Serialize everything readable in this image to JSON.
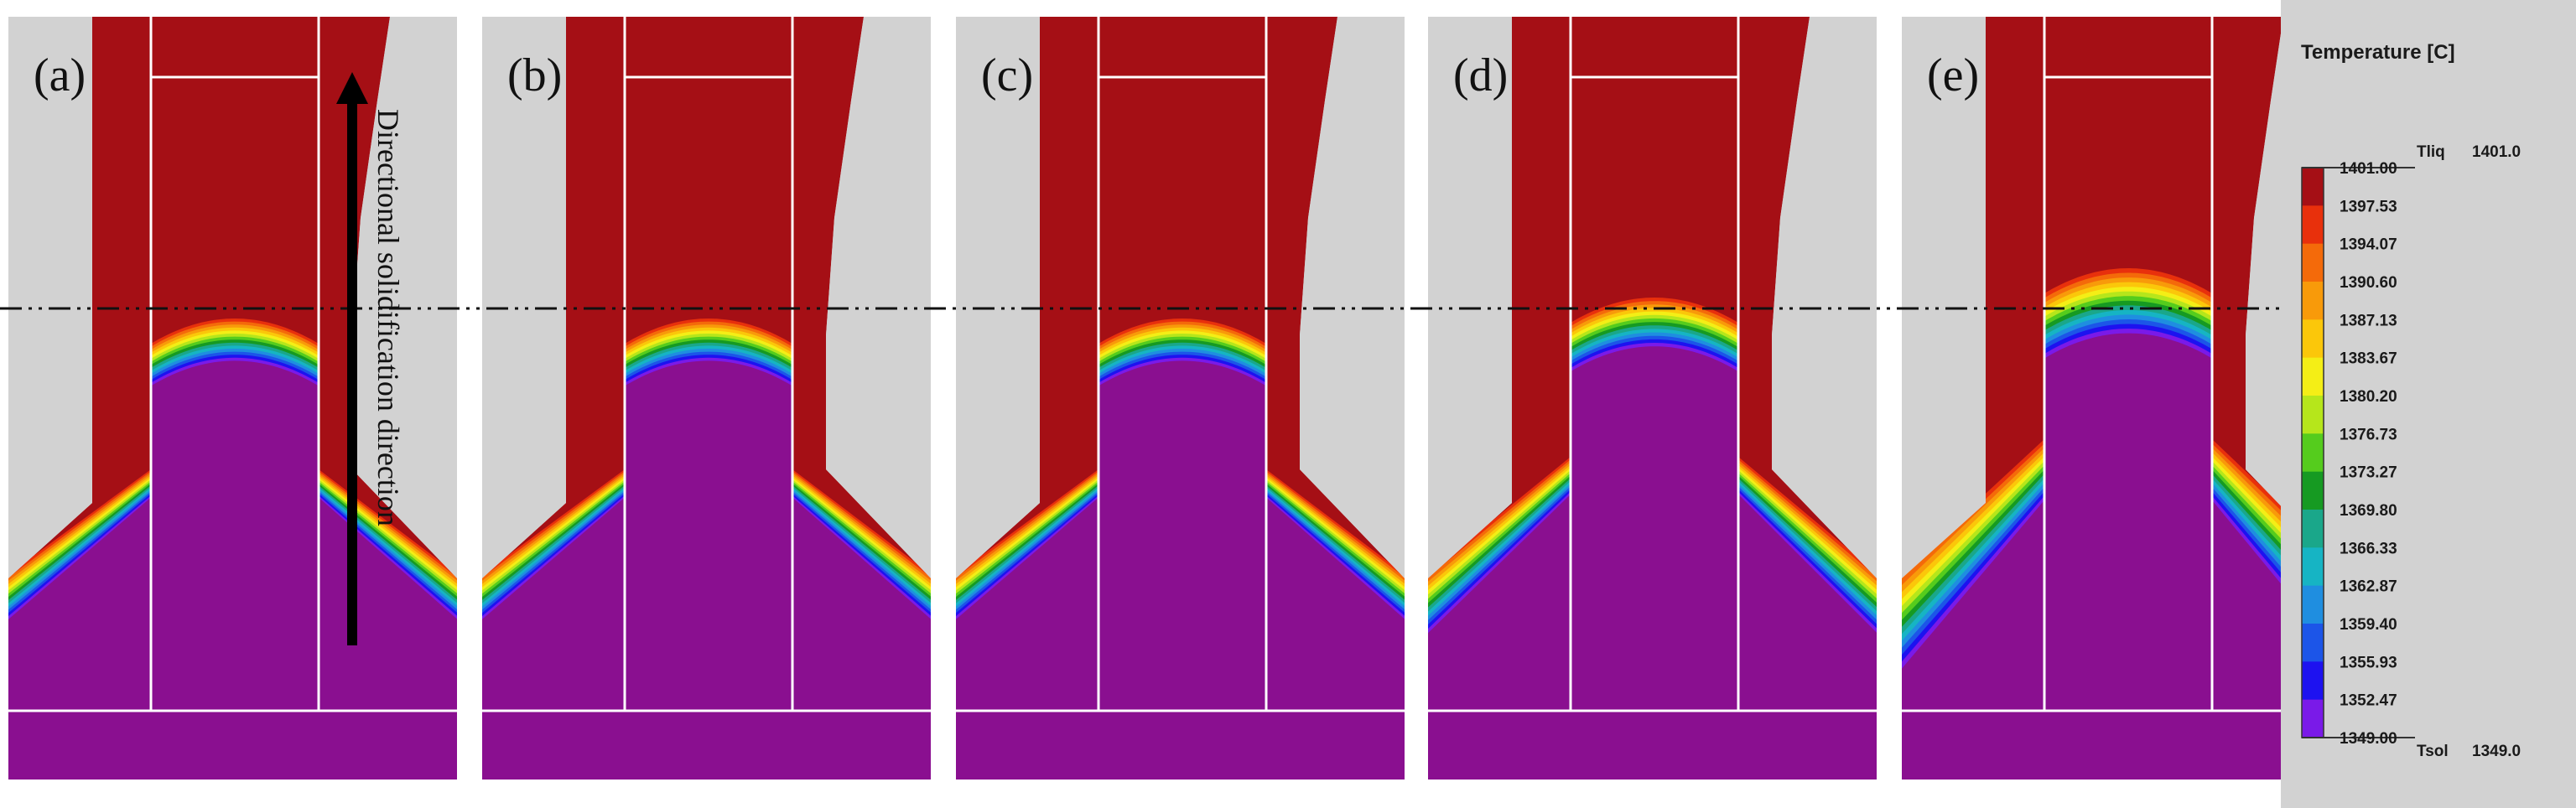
{
  "panels": [
    {
      "label": "(a)",
      "stage": 0
    },
    {
      "label": "(b)",
      "stage": 1
    },
    {
      "label": "(c)",
      "stage": 2
    },
    {
      "label": "(d)",
      "stage": 3
    },
    {
      "label": "(e)",
      "stage": 4
    }
  ],
  "arrow_label": "Directional solidification direction",
  "legend": {
    "title": "Temperature  [C]",
    "liquidus_label": "Tliq",
    "liquidus_value": "1401.0",
    "solidus_label": "Tsol",
    "solidus_value": "1349.0",
    "ticks": [
      "1401.00",
      "1397.53",
      "1394.07",
      "1390.60",
      "1387.13",
      "1383.67",
      "1380.20",
      "1376.73",
      "1373.27",
      "1369.80",
      "1366.33",
      "1362.87",
      "1359.40",
      "1355.93",
      "1352.47",
      "1349.00"
    ],
    "colors": [
      "#a50f15",
      "#e8300c",
      "#f46a0a",
      "#f89a0a",
      "#fbc70a",
      "#f4ee16",
      "#b6e61b",
      "#55cc1d",
      "#169a22",
      "#1aa78a",
      "#16b4c4",
      "#1f8ee0",
      "#1c55e8",
      "#1d12f0",
      "#7a1ae8",
      "#8a0f90"
    ]
  },
  "colors": {
    "liquid": "#a50f15",
    "solid": "#8a0f90",
    "mold": "#d2d2d2",
    "background": "#ffffff"
  }
}
